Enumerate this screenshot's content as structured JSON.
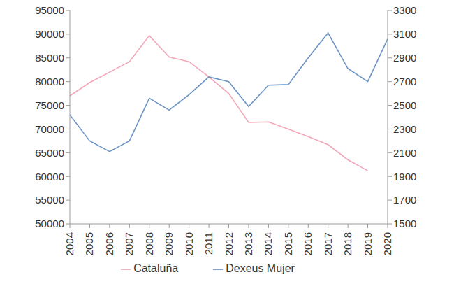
{
  "chart_data": {
    "type": "line",
    "categories": [
      "2004",
      "2005",
      "2006",
      "2007",
      "2008",
      "2009",
      "2010",
      "2011",
      "2012",
      "2013",
      "2014",
      "2015",
      "2016",
      "2017",
      "2018",
      "2019",
      "2020"
    ],
    "series": [
      {
        "name": "Cataluña",
        "color": "#f2a7b8",
        "axis": "y",
        "values": [
          77000,
          79800,
          82000,
          84200,
          89700,
          85200,
          84200,
          81000,
          77500,
          71400,
          71500,
          70000,
          68400,
          66700,
          63500,
          61200,
          null
        ]
      },
      {
        "name": "Dexeus Mujer",
        "color": "#6b93c4",
        "axis": "y2",
        "values": [
          2420,
          2200,
          2110,
          2200,
          2560,
          2460,
          2590,
          2740,
          2700,
          2490,
          2670,
          2675,
          2900,
          3110,
          2810,
          2700,
          3060
        ]
      }
    ],
    "ylim": [
      50000,
      95000
    ],
    "yticks": [
      50000,
      55000,
      60000,
      65000,
      70000,
      75000,
      80000,
      85000,
      90000,
      95000
    ],
    "y2lim": [
      1500,
      3300
    ],
    "y2ticks": [
      1500,
      1700,
      1900,
      2100,
      2300,
      2500,
      2700,
      2900,
      3100,
      3300
    ],
    "grid": false,
    "legend": "bottom"
  }
}
